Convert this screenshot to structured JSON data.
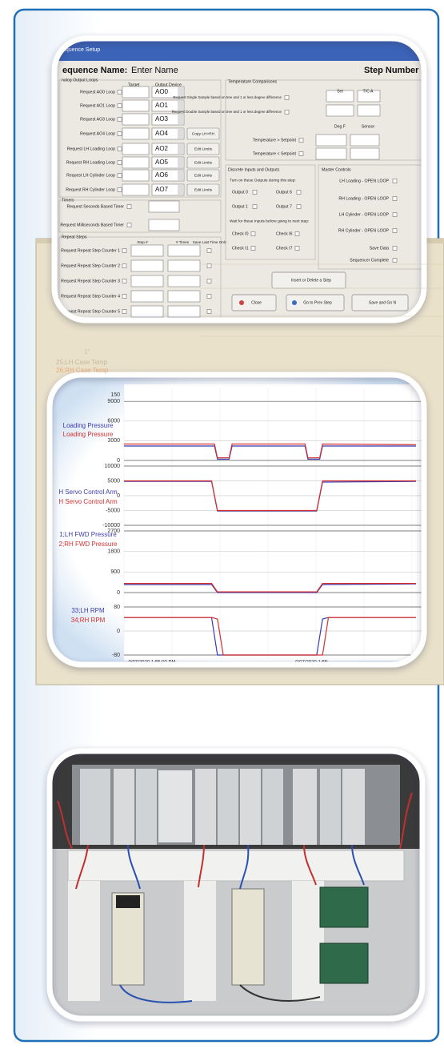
{
  "setup_window": {
    "title": "equence Setup",
    "name_label": "equence Name:",
    "name_value": "Enter Name",
    "step_label": "Step Number",
    "analog_group": "nalog Output Loops",
    "target_header": "Target",
    "output_header": "Output Device",
    "loops": [
      {
        "label": "Request AO0 Loop",
        "device": "AO0"
      },
      {
        "label": "Request AO1 Loop",
        "device": "AO1"
      },
      {
        "label": "Request AO3 Loop",
        "device": "AO3"
      },
      {
        "label": "Request AO4 Loop",
        "device": "AO4",
        "button": "Copy LH>RH"
      },
      {
        "label": "Request LH Loading Loop",
        "device": "AO2",
        "button": "Edit Limits"
      },
      {
        "label": "Request RH Loading Loop",
        "device": "AO5",
        "button": "Edit Limits"
      },
      {
        "label": "Request LH Cylinder Loop",
        "device": "AO6",
        "button": "Edit Limits"
      },
      {
        "label": "Request RH Cylinder Loop",
        "device": "AO7",
        "button": "Edit Limits"
      }
    ],
    "timers_group": "Timers",
    "timers": [
      "Request Seconds Based Timer",
      "Request Milliseconds Based Timer"
    ],
    "repeat_group": "Repeat Steps",
    "repeat_headers": [
      "Step #",
      "# Times",
      "Save Last Time Only"
    ],
    "repeat_rows": [
      "Request Repeat Step Counter 1",
      "Request Repeat Step Counter 2",
      "Request Repeat Step Counter 3",
      "Request Repeat Step Counter 4",
      "Request Repeat Step Counter 5"
    ],
    "temperature_group": "Temperature Comparisons",
    "temperature_requests": [
      "Request Single Sample based on tree and 1 or less degree difference",
      "Request Double Sample based on tree and 1 or less degree difference"
    ],
    "temperature_headers": [
      "Set",
      "T/C A",
      "Deg F",
      "Sensor"
    ],
    "temperature_checks": [
      "Temperature > Setpoint",
      "Temperature < Setpoint"
    ],
    "discrete_group": "Discrete Inputs and Outputs",
    "outputs_prompt": "Turn on these Outputs during this step:",
    "outputs": [
      "Output 0",
      "Output 6",
      "Output 1",
      "Output 7"
    ],
    "inputs_prompt": "Wait for these Inputs before going to next step:",
    "inputs": [
      "Check I0",
      "Check I6",
      "Check I1",
      "Check I7"
    ],
    "master_group": "Master Controls",
    "master_items": [
      "LH Loading - OPEN LOOP",
      "RH Loading - OPEN LOOP",
      "LH Cylinder - OPEN LOOP",
      "RH Cylinder - OPEN LOOP",
      "Save Data",
      "Sequencer Complete"
    ],
    "buttons": [
      "Insert or Delete a Step",
      "Close",
      "Go to Prev Step",
      "Save and Go N"
    ]
  },
  "trend_window": {
    "background_labels": [
      "1°",
      "25;LH Case Temp",
      "26;RH Case Temp"
    ],
    "top_label": "150",
    "x_labels": [
      "0/07/2020 1:55:00 PM",
      "0/07/2020 1:55:"
    ],
    "panels": [
      {
        "ylim": [
          0,
          10000
        ],
        "yticks": [
          0,
          3000,
          6000,
          9000
        ],
        "x": [
          0,
          31,
          32,
          36,
          37,
          62,
          63,
          67,
          68,
          100
        ],
        "series": [
          {
            "name": "Loading Pressure",
            "color": "#3b3bb0",
            "values": [
              2200,
              2200,
              200,
              200,
              2200,
              2200,
              200,
              200,
              2200,
              2200
            ]
          },
          {
            "name": "Loading Pressure",
            "color": "#d63030",
            "values": [
              2500,
              2500,
              400,
              400,
              2500,
              2500,
              400,
              400,
              2500,
              2400
            ]
          }
        ]
      },
      {
        "ylim": [
          -10000,
          10000
        ],
        "yticks": [
          -10000,
          -5000,
          0,
          5000,
          10000
        ],
        "x": [
          0,
          30,
          32,
          66,
          68,
          100
        ],
        "series": [
          {
            "name": "H Servo Control Arm",
            "color": "#3b3bb0",
            "values": [
              4800,
              4800,
              -5200,
              -5200,
              4600,
              4800
            ]
          },
          {
            "name": "H Servo Control Arm",
            "color": "#d63030",
            "values": [
              5000,
              5000,
              -5000,
              -5000,
              5000,
              5000
            ]
          }
        ]
      },
      {
        "ylim": [
          0,
          2700
        ],
        "yticks": [
          0,
          900,
          1800,
          2700
        ],
        "x": [
          0,
          30,
          32,
          66,
          68,
          100
        ],
        "series": [
          {
            "name": "1;LH FWD Pressure",
            "color": "#3b3bb0",
            "values": [
              350,
              350,
              0,
              0,
              350,
              380
            ]
          },
          {
            "name": "2;RH FWD Pressure",
            "color": "#d63030",
            "values": [
              400,
              400,
              30,
              30,
              400,
              400
            ]
          }
        ]
      },
      {
        "ylim": [
          -80,
          80
        ],
        "yticks": [
          -80,
          0,
          80
        ],
        "x": [
          0,
          30,
          32,
          34,
          66,
          68,
          70,
          100
        ],
        "series": [
          {
            "name": "33;LH RPM",
            "color": "#3b3bb0",
            "values": [
              45,
              45,
              -80,
              -80,
              -80,
              40,
              45,
              45
            ]
          },
          {
            "name": "34;RH RPM",
            "color": "#d63030",
            "values": [
              45,
              45,
              40,
              -80,
              -80,
              -80,
              45,
              45
            ]
          }
        ]
      }
    ]
  }
}
